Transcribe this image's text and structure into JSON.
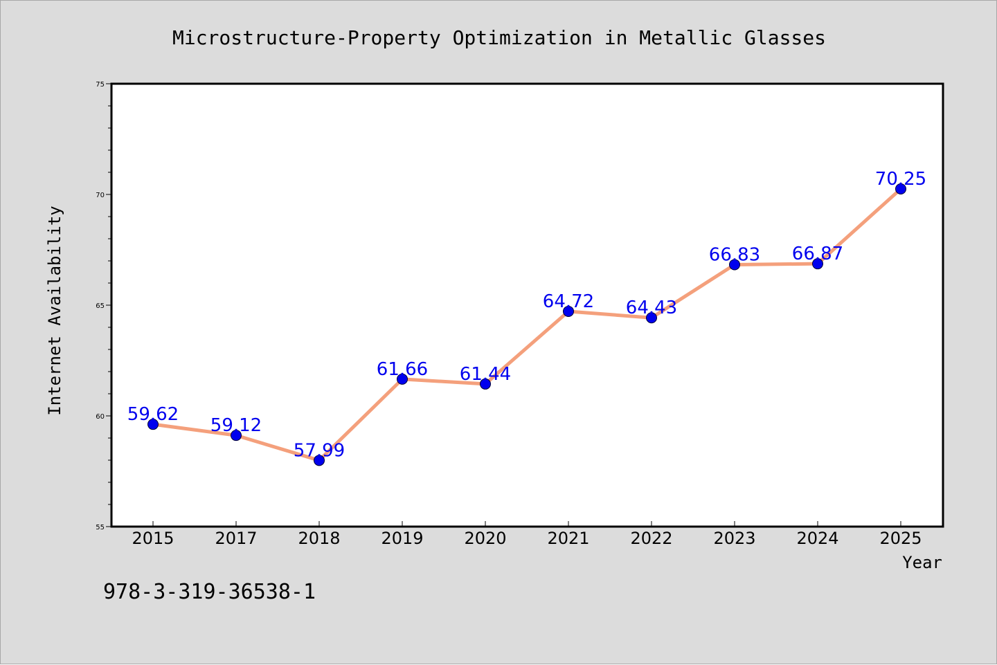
{
  "chart_data": {
    "type": "line",
    "title": "Microstructure-Property Optimization in Metallic Glasses",
    "xlabel": "Year",
    "ylabel": "Internet Availability",
    "categories": [
      "2015",
      "2017",
      "2018",
      "2019",
      "2020",
      "2021",
      "2022",
      "2023",
      "2024",
      "2025"
    ],
    "series": [
      {
        "values": [
          59.62,
          59.12,
          57.99,
          61.66,
          61.44,
          64.72,
          64.43,
          66.83,
          66.87,
          70.25
        ],
        "data_labels": [
          "59.62",
          "59.12",
          "57.99",
          "61.66",
          "61.44",
          "64.72",
          "64.43",
          "66.83",
          "66.87",
          "70.25"
        ],
        "line_color": "#f4a07c",
        "marker_color": "#0000ee"
      }
    ],
    "ylim": [
      55,
      75
    ],
    "yticks": [
      "55",
      "60",
      "65",
      "70",
      "75"
    ],
    "grid": false,
    "data_label_color": "#0000ee"
  },
  "annotation": "978-3-319-36538-1",
  "colors": {
    "figure_background": "#dcdcdc",
    "plot_background": "#ffffff"
  }
}
